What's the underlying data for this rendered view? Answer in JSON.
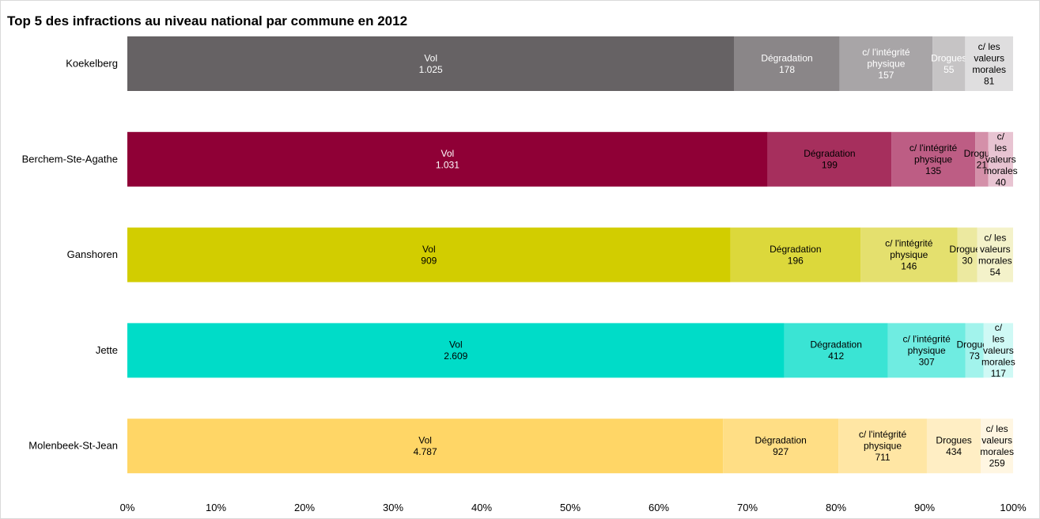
{
  "chart_data": {
    "type": "bar",
    "orientation": "horizontal",
    "stacked": "percent",
    "title": "Top 5 des infractions au niveau national par commune  en 2012",
    "categories": [
      "Koekelberg",
      "Berchem-Ste-Agathe",
      "Ganshoren",
      "Jette",
      "Molenbeek-St-Jean"
    ],
    "series": [
      {
        "name": "Vol",
        "segment_label": "Vol",
        "values": [
          1025,
          1031,
          909,
          2609,
          4787
        ],
        "display": [
          "1.025",
          "1.031",
          "909",
          "2.609",
          "4.787"
        ]
      },
      {
        "name": "Dégradation",
        "segment_label": "Dégradation",
        "values": [
          178,
          199,
          196,
          412,
          927
        ],
        "display": [
          "178",
          "199",
          "196",
          "412",
          "927"
        ]
      },
      {
        "name": "c/ l'intégrité physique",
        "segment_label": "c/ l'intégrité physique",
        "values": [
          157,
          135,
          146,
          307,
          711
        ],
        "display": [
          "157",
          "135",
          "146",
          "307",
          "711"
        ]
      },
      {
        "name": "Drogues",
        "segment_label": "Drogues",
        "values": [
          55,
          21,
          30,
          73,
          434
        ],
        "display": [
          "55",
          "21",
          "30",
          "73",
          "434"
        ]
      },
      {
        "name": "c/ les valeurs morales",
        "segment_label": "c/ les valeurs morales",
        "values": [
          81,
          40,
          54,
          117,
          259
        ],
        "display": [
          "81",
          "40",
          "54",
          "117",
          "259"
        ]
      }
    ],
    "colors": [
      [
        "#666264",
        "#8a8688",
        "#a8a5a7",
        "#c6c4c5",
        "#dfdedf"
      ],
      [
        "#8f0036",
        "#a62f5d",
        "#bd5d84",
        "#d490a9",
        "#e8c4d2"
      ],
      [
        "#d2cd00",
        "#dcd83b",
        "#e4e06e",
        "#ece9a0",
        "#f4f2ca"
      ],
      [
        "#00dcc8",
        "#3ae4d4",
        "#6fece1",
        "#a2f3ec",
        "#cff9f5"
      ],
      [
        "#ffd666",
        "#ffde85",
        "#ffe6a4",
        "#ffeec4",
        "#fff6e2"
      ]
    ],
    "label_colors": [
      [
        "#ffffff",
        "#ffffff",
        "#ffffff",
        "#ffffff",
        "#000000"
      ],
      [
        "#ffffff",
        "#000000",
        "#000000",
        "#000000",
        "#000000"
      ],
      [
        "#000000",
        "#000000",
        "#000000",
        "#000000",
        "#000000"
      ],
      [
        "#000000",
        "#000000",
        "#000000",
        "#000000",
        "#000000"
      ],
      [
        "#000000",
        "#000000",
        "#000000",
        "#000000",
        "#000000"
      ]
    ],
    "xlim": [
      0,
      100
    ],
    "xticks": [
      "0%",
      "10%",
      "20%",
      "30%",
      "40%",
      "50%",
      "60%",
      "70%",
      "80%",
      "90%",
      "100%"
    ],
    "xlabel": "",
    "ylabel": "",
    "legend": "none",
    "grid": false
  }
}
